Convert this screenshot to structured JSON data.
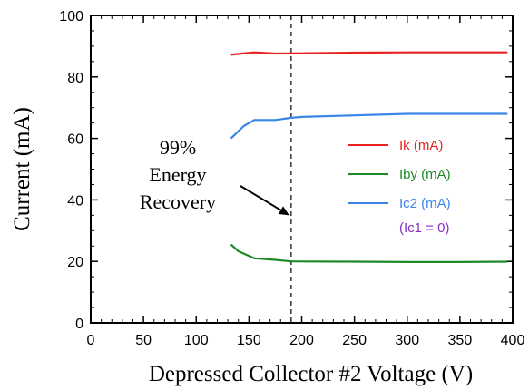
{
  "chart_data": {
    "type": "line",
    "xlabel": "Depressed Collector #2 Voltage (V)",
    "ylabel": "Current (mA)",
    "xlim": [
      0,
      400
    ],
    "ylim": [
      0,
      100
    ],
    "xticks": [
      "0",
      "50",
      "100",
      "150",
      "200",
      "250",
      "300",
      "350",
      "400"
    ],
    "yticks": [
      "0",
      "20",
      "40",
      "60",
      "80",
      "100"
    ],
    "grid": false,
    "legend_position": "right",
    "series": [
      {
        "name": "Ik (mA)",
        "color": "#e8231f",
        "x": [
          133,
          140,
          155,
          175,
          200,
          250,
          300,
          350,
          395
        ],
        "y": [
          87.2,
          87.5,
          88.0,
          87.6,
          87.7,
          87.9,
          88.0,
          88.0,
          88.0
        ]
      },
      {
        "name": "Iby (mA)",
        "color": "#1e8a26",
        "x": [
          133,
          140,
          155,
          175,
          190,
          250,
          300,
          350,
          395
        ],
        "y": [
          25.5,
          23.3,
          21.0,
          20.5,
          20.0,
          19.9,
          19.8,
          19.8,
          19.9
        ]
      },
      {
        "name": "Ic2 (mA)",
        "color": "#3a85e6",
        "x": [
          133,
          145,
          155,
          175,
          190,
          200,
          250,
          300,
          350,
          395
        ],
        "y": [
          60.0,
          64.0,
          66.0,
          66.0,
          66.7,
          67.0,
          67.5,
          68.0,
          68.0,
          68.0
        ]
      }
    ],
    "legend_note": {
      "text": "(Ic1 = 0)",
      "color": "#8a2fbf"
    },
    "annotation": {
      "lines": [
        "99%",
        "Energy",
        "Recovery"
      ],
      "arrow_target": {
        "x": 190,
        "y": 35
      }
    },
    "reference_line": {
      "x": 190,
      "style": "dashed"
    }
  }
}
